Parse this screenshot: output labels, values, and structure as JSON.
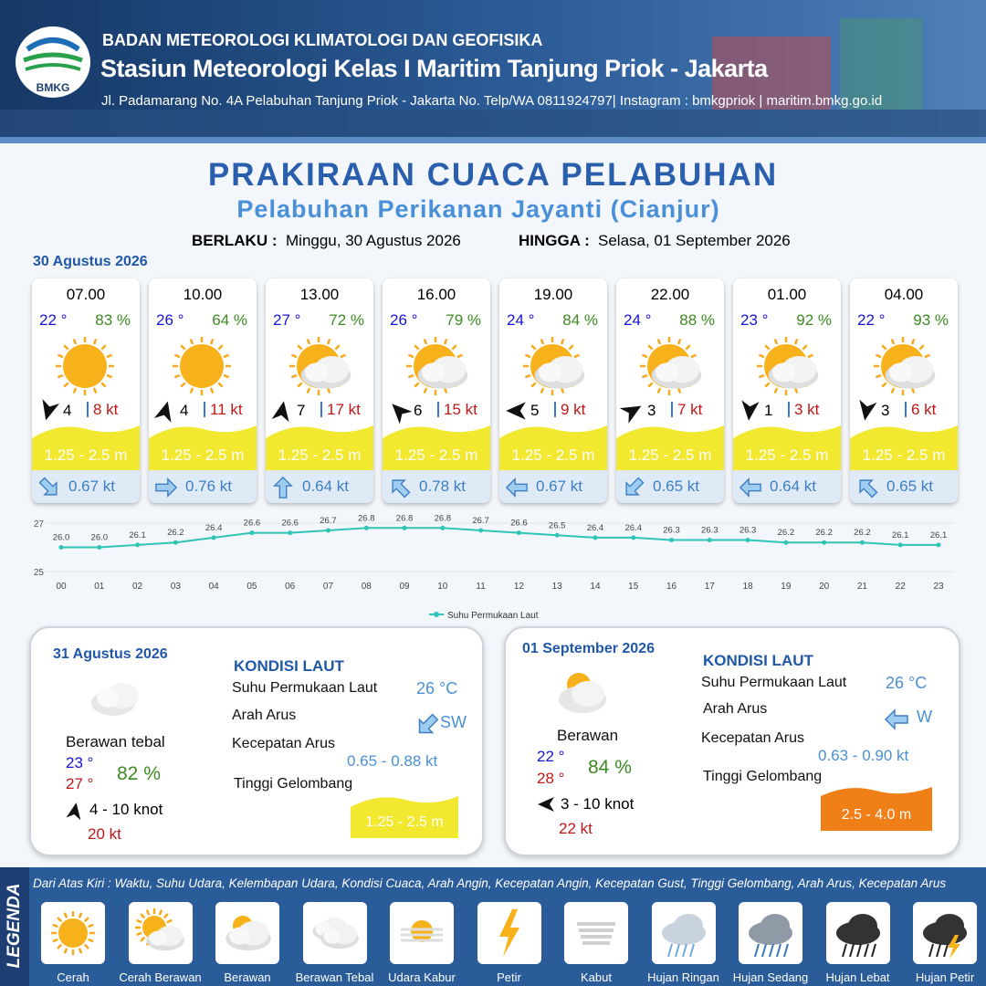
{
  "header": {
    "logo": "BMKG",
    "agency": "BADAN METEOROLOGI KLIMATOLOGI DAN GEOFISIKA",
    "station": "Stasiun Meteorologi Kelas I Maritim Tanjung Priok - Jakarta",
    "address": "Jl. Padamarang No. 4A Pelabuhan Tanjung Priok - Jakarta No. Telp/WA 0811924797| Instagram : bmkgpriok | maritim.bmkg.go.id"
  },
  "title": "PRAKIRAAN CUACA PELABUHAN",
  "subtitle": "Pelabuhan Perikanan Jayanti (Cianjur)",
  "valid_label": "BERLAKU :",
  "valid_from": "Minggu, 30 Agustus 2026",
  "until_label": "HINGGA :",
  "valid_until": "Selasa, 01 September 2026",
  "day1_date": "30 Agustus 2026",
  "forecasts": [
    {
      "time": "07.00",
      "temperature": "22 °",
      "humidity": "83 %",
      "wind_speed": "4",
      "gust": "8 kt",
      "wave": "1.25 - 2.5 m",
      "current": "0.67 kt"
    },
    {
      "time": "10.00",
      "temperature": "26 °",
      "humidity": "64 %",
      "wind_speed": "4",
      "gust": "11 kt",
      "wave": "1.25 - 2.5 m",
      "current": "0.76 kt"
    },
    {
      "time": "13.00",
      "temperature": "27 °",
      "humidity": "72 %",
      "wind_speed": "7",
      "gust": "17 kt",
      "wave": "1.25 - 2.5 m",
      "current": "0.64 kt"
    },
    {
      "time": "16.00",
      "temperature": "26 °",
      "humidity": "79 %",
      "wind_speed": "6",
      "gust": "15 kt",
      "wave": "1.25 - 2.5 m",
      "current": "0.78 kt"
    },
    {
      "time": "19.00",
      "temperature": "24 °",
      "humidity": "84 %",
      "wind_speed": "5",
      "gust": "9 kt",
      "wave": "1.25 - 2.5 m",
      "current": "0.67 kt"
    },
    {
      "time": "22.00",
      "temperature": "24 °",
      "humidity": "88 %",
      "wind_speed": "3",
      "gust": "7 kt",
      "wave": "1.25 - 2.5 m",
      "current": "0.65 kt"
    },
    {
      "time": "01.00",
      "temperature": "23 °",
      "humidity": "92 %",
      "wind_speed": "1",
      "gust": "3 kt",
      "wave": "1.25 - 2.5 m",
      "current": "0.64 kt"
    },
    {
      "time": "04.00",
      "temperature": "22 °",
      "humidity": "93 %",
      "wind_speed": "3",
      "gust": "6 kt",
      "wave": "1.25 - 2.5 m",
      "current": "0.65 kt"
    }
  ],
  "chart_data": {
    "type": "line",
    "categories": [
      "00",
      "01",
      "02",
      "03",
      "04",
      "05",
      "06",
      "07",
      "08",
      "09",
      "10",
      "11",
      "12",
      "13",
      "14",
      "15",
      "16",
      "17",
      "18",
      "19",
      "20",
      "21",
      "22",
      "23"
    ],
    "series": [
      {
        "name": "Suhu Permukaan Laut",
        "color": "#2ec4b6",
        "values": [
          26.0,
          26.0,
          26.1,
          26.2,
          26.4,
          26.6,
          26.6,
          26.7,
          26.8,
          26.8,
          26.8,
          26.7,
          26.6,
          26.5,
          26.4,
          26.4,
          26.3,
          26.3,
          26.3,
          26.2,
          26.2,
          26.2,
          26.1,
          26.1
        ],
        "value_labels": [
          "26.0",
          "26.0",
          "26.1",
          "26.2",
          "26.4",
          "26.6",
          "26.6",
          "26.7",
          "26.8",
          "26.8",
          "26.8",
          "26.7",
          "26.6",
          "26.5",
          "26.4",
          "26.4",
          "26.3",
          "26.3",
          "26.3",
          "26.2",
          "26.2",
          "26.2",
          "26.1",
          "26.1"
        ]
      }
    ],
    "ylim": [
      25,
      27
    ],
    "yticks": [
      25,
      27
    ],
    "legend": "bottom"
  },
  "days": [
    {
      "date": "31 Agustus 2026",
      "condition": "Berawan tebal",
      "temp_min": "23 °",
      "temp_max": "27 °",
      "humidity": "82 %",
      "wind": "4  - 10 knot",
      "gust": "20 kt",
      "sea_title": "KONDISI LAUT",
      "sst_label": "Suhu Permukaan Laut",
      "sst": "26 °C",
      "current_dir_label": "Arah Arus",
      "current_dir": "SW",
      "current_speed_label": "Kecepatan Arus",
      "current_speed": "0.65  - 0.88 kt",
      "wave_label": "Tinggi Gelombang",
      "wave": "1.25 - 2.5 m"
    },
    {
      "date": "01 September 2026",
      "condition": "Berawan",
      "temp_min": "22 °",
      "temp_max": "28 °",
      "humidity": "84 %",
      "wind": "3  - 10 knot",
      "gust": "22 kt",
      "sea_title": "KONDISI LAUT",
      "sst_label": "Suhu Permukaan Laut",
      "sst": "26 °C",
      "current_dir_label": "Arah Arus",
      "current_dir": "W",
      "current_speed_label": "Kecepatan Arus",
      "current_speed": "0.63 - 0.90 kt",
      "wave_label": "Tinggi Gelombang",
      "wave": "2.5 - 4.0 m"
    }
  ],
  "legend": {
    "title": "LEGENDA",
    "note": "Dari Atas Kiri : Waktu, Suhu Udara, Kelembapan Udara, Kondisi Cuaca, Arah Angin, Kecepatan Angin, Kecepatan Gust, Tinggi Gelombang, Arah Arus, Kecepatan Arus",
    "items": [
      "Cerah",
      "Cerah Berawan",
      "Berawan",
      "Berawan Tebal",
      "Udara Kabur",
      "Petir",
      "Kabut",
      "Hujan Ringan",
      "Hujan Sedang",
      "Hujan Lebat",
      "Hujan Petir"
    ]
  }
}
